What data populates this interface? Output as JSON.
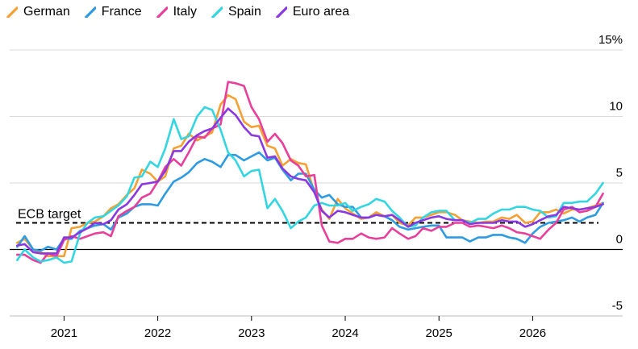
{
  "chart_data": {
    "type": "line",
    "title": "",
    "xlabel": "",
    "ylabel": "",
    "y_unit_suffix": "%",
    "ylim": [
      -5,
      15
    ],
    "xlim": [
      2020.42,
      2026.96
    ],
    "yticks": [
      15,
      10,
      5,
      0,
      -5
    ],
    "ytick_labels": [
      "15%",
      "10",
      "5",
      "0",
      "-5"
    ],
    "xticks": [
      2021,
      2022,
      2023,
      2024,
      2025,
      2026
    ],
    "xtick_labels": [
      "2021",
      "2022",
      "2023",
      "2024",
      "2025",
      "2026"
    ],
    "grid": true,
    "legend_position": "top-left",
    "reference_line": {
      "label": "ECB target",
      "value": 2
    },
    "series": [
      {
        "name": "German",
        "color": "#f5a033",
        "x": [
          2020.5,
          2020.58,
          2020.67,
          2020.75,
          2020.83,
          2020.92,
          2021.0,
          2021.08,
          2021.17,
          2021.25,
          2021.33,
          2021.42,
          2021.5,
          2021.58,
          2021.67,
          2021.75,
          2021.83,
          2021.92,
          2022.0,
          2022.08,
          2022.17,
          2022.25,
          2022.33,
          2022.42,
          2022.5,
          2022.58,
          2022.67,
          2022.75,
          2022.83,
          2022.92,
          2023.0,
          2023.08,
          2023.17,
          2023.25,
          2023.33,
          2023.42,
          2023.5,
          2023.58,
          2023.67,
          2023.75,
          2023.83,
          2023.92,
          2024.0,
          2024.08,
          2024.17,
          2024.25,
          2024.33,
          2024.42,
          2024.5,
          2024.58,
          2024.67,
          2024.75,
          2024.83,
          2024.92,
          2025.0,
          2025.08,
          2025.17,
          2025.25,
          2025.33,
          2025.42,
          2025.5,
          2025.58,
          2025.67,
          2025.75,
          2025.83,
          2025.92,
          2026.0,
          2026.08,
          2026.17,
          2026.25,
          2026.33,
          2026.42,
          2026.5,
          2026.58,
          2026.67,
          2026.75
        ],
        "y": [
          0.5,
          0.8,
          0,
          -0.2,
          -0.5,
          -0.5,
          -0.5,
          1.6,
          1.7,
          2.0,
          2.1,
          2.5,
          3.1,
          3.4,
          4.1,
          4.6,
          6.0,
          5.7,
          5.1,
          5.5,
          7.6,
          7.8,
          8.7,
          8.2,
          8.5,
          8.8,
          10.9,
          11.6,
          11.3,
          9.6,
          9.2,
          9.3,
          7.8,
          7.6,
          6.3,
          6.8,
          6.5,
          6.4,
          4.3,
          3.0,
          2.3,
          3.8,
          3.1,
          2.7,
          2.3,
          2.4,
          2.8,
          2.5,
          2.6,
          2.0,
          1.8,
          2.4,
          2.4,
          2.6,
          2.8,
          2.8,
          2.6,
          2.2,
          2.1,
          2.0,
          2.1,
          2.1,
          2.4,
          2.3,
          2.6,
          2.0,
          2.1,
          2.8,
          2.8,
          3.0,
          2.7,
          3.0,
          3.0,
          3.1,
          3.3,
          3.5
        ]
      },
      {
        "name": "France",
        "color": "#2e9be0",
        "x": [
          2020.5,
          2020.58,
          2020.67,
          2020.75,
          2020.83,
          2020.92,
          2021.0,
          2021.08,
          2021.17,
          2021.25,
          2021.33,
          2021.42,
          2021.5,
          2021.58,
          2021.67,
          2021.75,
          2021.83,
          2021.92,
          2022.0,
          2022.08,
          2022.17,
          2022.25,
          2022.33,
          2022.42,
          2022.5,
          2022.58,
          2022.67,
          2022.75,
          2022.83,
          2022.92,
          2023.0,
          2023.08,
          2023.17,
          2023.25,
          2023.33,
          2023.42,
          2023.5,
          2023.58,
          2023.67,
          2023.75,
          2023.83,
          2023.92,
          2024.0,
          2024.08,
          2024.17,
          2024.25,
          2024.33,
          2024.42,
          2024.5,
          2024.58,
          2024.67,
          2024.75,
          2024.83,
          2024.92,
          2025.0,
          2025.08,
          2025.17,
          2025.25,
          2025.33,
          2025.42,
          2025.5,
          2025.58,
          2025.67,
          2025.75,
          2025.83,
          2025.92,
          2026.0,
          2026.08,
          2026.17,
          2026.25,
          2026.33,
          2026.42,
          2026.5,
          2026.58,
          2026.67,
          2026.75
        ],
        "y": [
          0.2,
          1.0,
          0,
          -0.1,
          0.2,
          0,
          0.8,
          0.8,
          1.4,
          1.6,
          1.8,
          1.9,
          1.5,
          2.4,
          2.7,
          3.2,
          3.4,
          3.4,
          3.3,
          4.2,
          5.1,
          5.4,
          5.8,
          6.5,
          6.8,
          6.6,
          6.2,
          7.1,
          7.1,
          6.7,
          7.0,
          7.3,
          6.7,
          6.9,
          6.0,
          5.2,
          5.7,
          5.7,
          4.5,
          3.9,
          4.1,
          3.4,
          3.2,
          3.2,
          2.4,
          2.4,
          2.6,
          2.5,
          2.2,
          1.7,
          1.5,
          1.6,
          1.7,
          1.8,
          1.8,
          0.9,
          0.9,
          0.9,
          0.6,
          0.9,
          0.9,
          1.1,
          1.1,
          0.9,
          0.8,
          0.5,
          1.2,
          1.7,
          2.0,
          2.1,
          2.2,
          2.4,
          2.1,
          2.4,
          2.6,
          3.5
        ]
      },
      {
        "name": "Italy",
        "color": "#e8409a",
        "x": [
          2020.5,
          2020.58,
          2020.67,
          2020.75,
          2020.83,
          2020.92,
          2021.0,
          2021.08,
          2021.17,
          2021.25,
          2021.33,
          2021.42,
          2021.5,
          2021.58,
          2021.67,
          2021.75,
          2021.83,
          2021.92,
          2022.0,
          2022.08,
          2022.17,
          2022.25,
          2022.33,
          2022.42,
          2022.5,
          2022.58,
          2022.67,
          2022.75,
          2022.83,
          2022.92,
          2023.0,
          2023.08,
          2023.17,
          2023.25,
          2023.33,
          2023.42,
          2023.5,
          2023.58,
          2023.67,
          2023.75,
          2023.83,
          2023.92,
          2024.0,
          2024.08,
          2024.17,
          2024.25,
          2024.33,
          2024.42,
          2024.5,
          2024.58,
          2024.67,
          2024.75,
          2024.83,
          2024.92,
          2025.0,
          2025.08,
          2025.17,
          2025.25,
          2025.33,
          2025.42,
          2025.5,
          2025.58,
          2025.67,
          2025.75,
          2025.83,
          2025.92,
          2026.0,
          2026.08,
          2026.17,
          2026.25,
          2026.33,
          2026.42,
          2026.5,
          2026.58,
          2026.67,
          2026.75
        ],
        "y": [
          -0.4,
          -0.4,
          -0.8,
          -1.0,
          -0.3,
          -0.5,
          0.7,
          1.0,
          0.8,
          1.0,
          1.2,
          1.3,
          1.0,
          2.5,
          2.9,
          3.2,
          3.9,
          4.2,
          5.1,
          6.2,
          6.8,
          6.3,
          7.3,
          8.5,
          8.4,
          9.1,
          9.4,
          12.6,
          12.5,
          12.3,
          10.7,
          9.8,
          8.1,
          8.7,
          8.0,
          6.7,
          6.3,
          5.5,
          5.6,
          1.8,
          0.6,
          0.5,
          0.8,
          0.8,
          1.2,
          0.9,
          0.8,
          0.9,
          1.6,
          1.2,
          0.8,
          1.0,
          1.6,
          1.4,
          1.7,
          1.7,
          2.0,
          2.0,
          1.7,
          1.8,
          1.7,
          1.6,
          1.8,
          1.6,
          1.3,
          1.2,
          1.0,
          0.8,
          1.5,
          2.0,
          3.0,
          3.2,
          2.8,
          2.9,
          3.2,
          4.2
        ]
      },
      {
        "name": "Spain",
        "color": "#33d6e0",
        "x": [
          2020.5,
          2020.58,
          2020.67,
          2020.75,
          2020.83,
          2020.92,
          2021.0,
          2021.08,
          2021.17,
          2021.25,
          2021.33,
          2021.42,
          2021.5,
          2021.58,
          2021.67,
          2021.75,
          2021.83,
          2021.92,
          2022.0,
          2022.08,
          2022.17,
          2022.25,
          2022.33,
          2022.42,
          2022.5,
          2022.58,
          2022.67,
          2022.75,
          2022.83,
          2022.92,
          2023.0,
          2023.08,
          2023.17,
          2023.25,
          2023.33,
          2023.42,
          2023.5,
          2023.58,
          2023.67,
          2023.75,
          2023.83,
          2023.92,
          2024.0,
          2024.08,
          2024.17,
          2024.25,
          2024.33,
          2024.42,
          2024.5,
          2024.58,
          2024.67,
          2024.75,
          2024.83,
          2024.92,
          2025.0,
          2025.08,
          2025.17,
          2025.25,
          2025.33,
          2025.42,
          2025.5,
          2025.58,
          2025.67,
          2025.75,
          2025.83,
          2025.92,
          2026.0,
          2026.08,
          2026.17,
          2026.25,
          2026.33,
          2026.42,
          2026.5,
          2026.58,
          2026.67,
          2026.75
        ],
        "y": [
          -0.8,
          0,
          -0.6,
          -0.9,
          -0.8,
          -0.6,
          -1.0,
          -0.9,
          1.2,
          2.0,
          2.4,
          2.5,
          2.9,
          3.3,
          4.0,
          5.4,
          5.5,
          6.6,
          6.2,
          7.6,
          9.8,
          8.3,
          8.5,
          10.0,
          10.7,
          10.5,
          9.0,
          7.3,
          6.7,
          5.5,
          5.9,
          6.0,
          3.1,
          3.8,
          2.9,
          1.6,
          2.1,
          2.4,
          3.3,
          3.5,
          3.3,
          3.3,
          3.5,
          2.9,
          3.2,
          3.4,
          3.8,
          3.6,
          2.9,
          2.4,
          1.7,
          1.8,
          2.4,
          2.8,
          2.9,
          2.9,
          2.2,
          2.2,
          2.0,
          2.3,
          2.3,
          2.7,
          3.0,
          3.0,
          3.2,
          3.2,
          3.0,
          2.9,
          2.4,
          2.5,
          3.5,
          3.5,
          3.6,
          3.6,
          4.2,
          5.0
        ]
      },
      {
        "name": "Euro area",
        "color": "#8a38e0",
        "x": [
          2020.5,
          2020.58,
          2020.67,
          2020.75,
          2020.83,
          2020.92,
          2021.0,
          2021.08,
          2021.17,
          2021.25,
          2021.33,
          2021.42,
          2021.5,
          2021.58,
          2021.67,
          2021.75,
          2021.83,
          2021.92,
          2022.0,
          2022.08,
          2022.17,
          2022.25,
          2022.33,
          2022.42,
          2022.5,
          2022.58,
          2022.67,
          2022.75,
          2022.83,
          2022.92,
          2023.0,
          2023.08,
          2023.17,
          2023.25,
          2023.33,
          2023.42,
          2023.5,
          2023.58,
          2023.67,
          2023.75,
          2023.83,
          2023.92,
          2024.0,
          2024.08,
          2024.17,
          2024.25,
          2024.33,
          2024.42,
          2024.5,
          2024.58,
          2024.67,
          2024.75,
          2024.83,
          2024.92,
          2025.0,
          2025.08,
          2025.17,
          2025.25,
          2025.33,
          2025.42,
          2025.5,
          2025.58,
          2025.67,
          2025.75,
          2025.83,
          2025.92,
          2026.0,
          2026.08,
          2026.17,
          2026.25,
          2026.33,
          2026.42,
          2026.5,
          2026.58,
          2026.67,
          2026.75
        ],
        "y": [
          0.3,
          0.4,
          -0.2,
          -0.3,
          -0.3,
          -0.3,
          0.9,
          0.9,
          1.3,
          1.6,
          2.0,
          1.9,
          2.2,
          3.0,
          3.4,
          4.1,
          4.9,
          5.0,
          5.1,
          5.9,
          7.4,
          7.4,
          8.1,
          8.6,
          8.9,
          9.1,
          9.9,
          10.6,
          10.1,
          9.2,
          8.6,
          8.5,
          6.9,
          7.0,
          6.1,
          5.5,
          5.3,
          5.2,
          4.3,
          2.9,
          2.4,
          2.9,
          2.8,
          2.6,
          2.4,
          2.4,
          2.6,
          2.5,
          2.6,
          2.2,
          1.7,
          2.0,
          2.2,
          2.4,
          2.5,
          2.3,
          2.2,
          2.2,
          1.9,
          2.0,
          2.0,
          2.0,
          2.2,
          2.1,
          2.1,
          1.7,
          1.9,
          2.2,
          2.5,
          2.6,
          3.2,
          3.1,
          3.0,
          3.1,
          3.2,
          3.4
        ]
      }
    ]
  }
}
